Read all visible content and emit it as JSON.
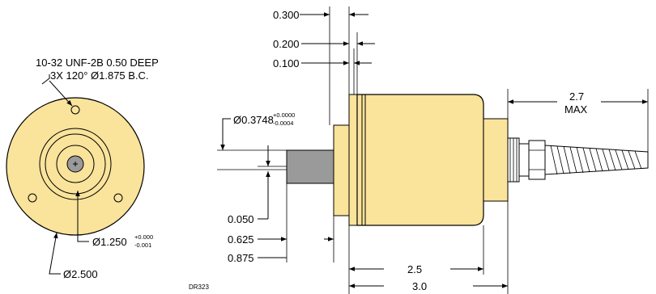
{
  "drawing_code": "DR323",
  "colors": {
    "body_fill": "#fae39b",
    "shaft_fill": "#9a9a9a",
    "outline": "#000000"
  },
  "front_view": {
    "thread_note_line1": "10-32 UNF-2B 0.50 DEEP",
    "thread_note_line2": "3X 120° Ø1.875 B.C.",
    "pilot_dia": "Ø1.250",
    "pilot_tol_upper": "+0.000",
    "pilot_tol_lower": "-0.001",
    "outer_dia": "Ø2.500"
  },
  "side_view": {
    "dim_0300": "0.300",
    "dim_0200": "0.200",
    "dim_0100": "0.100",
    "shaft_dia": "Ø0.3748",
    "shaft_tol_upper": "+0.0000",
    "shaft_tol_lower": "-0.0004",
    "dim_0050": "0.050",
    "dim_0625": "0.625",
    "dim_0875": "0.875",
    "dim_body": "2.5",
    "dim_overall": "3.0",
    "cable_len": "2.7",
    "cable_len_unit": "MAX"
  }
}
